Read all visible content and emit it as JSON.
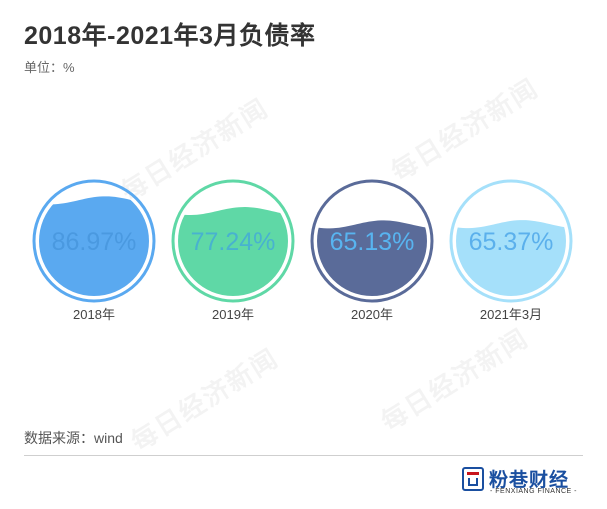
{
  "title": "2018年-2021年3月负债率",
  "unit": "单位：%",
  "source": "数据来源：wind",
  "watermark": "每日经济新闻",
  "brand": {
    "name": "粉巷财经",
    "sub": "- FENXIANG FINANCE -",
    "colors": {
      "primary": "#1a4fa0",
      "accent": "#c8161d"
    }
  },
  "chart_data": {
    "type": "liquid-fill",
    "categories": [
      "2018年",
      "2019年",
      "2020年",
      "2021年3月"
    ],
    "values": [
      86.97,
      77.24,
      65.13,
      65.37
    ],
    "labels": [
      "86.97%",
      "77.24%",
      "65.13%",
      "65.37%"
    ],
    "ylim": [
      0,
      100
    ],
    "grid": false,
    "colors": [
      {
        "fill": "#5aa9f0",
        "ring": "#5aa9f0",
        "text": "#4a99e0"
      },
      {
        "fill": "#5fd8a6",
        "ring": "#5fd8a6",
        "text": "#48b2cf"
      },
      {
        "fill": "#5a6b99",
        "ring": "#5a6b99",
        "text": "#58b4f0"
      },
      {
        "fill": "#a5e0fa",
        "ring": "#a5e0fa",
        "text": "#5bb0ec"
      }
    ]
  }
}
